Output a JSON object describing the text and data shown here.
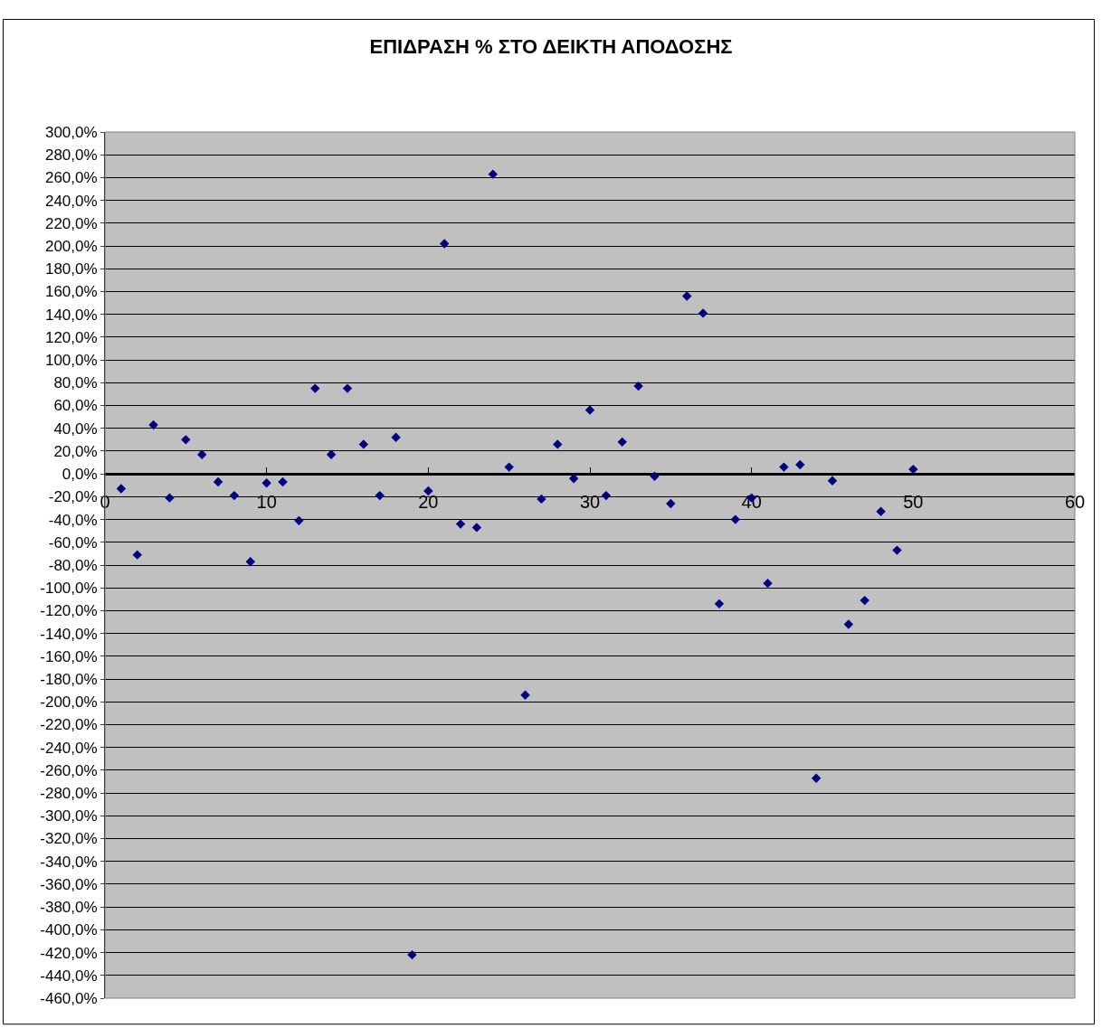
{
  "chart_data": {
    "type": "scatter",
    "title": "ΕΠΙΔΡΑΣΗ % ΣΤΟ ΔΕΙΚΤΗ ΑΠΟΔΟΣΗΣ",
    "x": [
      1,
      2,
      3,
      4,
      5,
      6,
      7,
      8,
      9,
      10,
      11,
      12,
      13,
      14,
      15,
      16,
      17,
      18,
      19,
      20,
      21,
      22,
      23,
      24,
      25,
      26,
      27,
      28,
      29,
      30,
      31,
      32,
      33,
      34,
      35,
      36,
      37,
      38,
      39,
      40,
      41,
      42,
      43,
      44,
      45,
      46,
      47,
      48,
      49,
      50
    ],
    "values": [
      -13,
      -71,
      43,
      -21,
      30,
      17,
      -7,
      -19,
      -77,
      -8,
      -7,
      -41,
      75,
      17,
      75,
      26,
      -19,
      32,
      -422,
      -15,
      202,
      -44,
      -47,
      263,
      6,
      -194,
      -22,
      26,
      -4,
      56,
      -19,
      28,
      77,
      -2,
      -26,
      156,
      141,
      -114,
      -40,
      -21,
      -96,
      6,
      8,
      -267,
      -6,
      -132,
      -111,
      -33,
      -67,
      4
    ],
    "color": "#000080",
    "marker": "diamond",
    "grid": "y",
    "xlim": [
      0,
      60
    ],
    "xticks": [
      0,
      10,
      20,
      30,
      40,
      50,
      60
    ],
    "ylim": [
      -460,
      300
    ],
    "yticks": [
      {
        "value": 300,
        "label": "300,0%"
      },
      {
        "value": 280,
        "label": "280,0%"
      },
      {
        "value": 260,
        "label": "260,0%"
      },
      {
        "value": 240,
        "label": "240,0%"
      },
      {
        "value": 220,
        "label": "220,0%"
      },
      {
        "value": 200,
        "label": "200,0%"
      },
      {
        "value": 180,
        "label": "180,0%"
      },
      {
        "value": 160,
        "label": "160,0%"
      },
      {
        "value": 140,
        "label": "140,0%"
      },
      {
        "value": 120,
        "label": "120,0%"
      },
      {
        "value": 100,
        "label": "100,0%"
      },
      {
        "value": 80,
        "label": "80,0%"
      },
      {
        "value": 60,
        "label": "60,0%"
      },
      {
        "value": 40,
        "label": "40,0%"
      },
      {
        "value": 20,
        "label": "20,0%"
      },
      {
        "value": 0,
        "label": "0,0%"
      },
      {
        "value": -20,
        "label": "-20,0%"
      },
      {
        "value": -40,
        "label": "-40,0%"
      },
      {
        "value": -60,
        "label": "-60,0%"
      },
      {
        "value": -80,
        "label": "-80,0%"
      },
      {
        "value": -100,
        "label": "-100,0%"
      },
      {
        "value": -120,
        "label": "-120,0%"
      },
      {
        "value": -140,
        "label": "-140,0%"
      },
      {
        "value": -160,
        "label": "-160,0%"
      },
      {
        "value": -180,
        "label": "-180,0%"
      },
      {
        "value": -200,
        "label": "-200,0%"
      },
      {
        "value": -220,
        "label": "-220,0%"
      },
      {
        "value": -240,
        "label": "-240,0%"
      },
      {
        "value": -260,
        "label": "-260,0%"
      },
      {
        "value": -280,
        "label": "-280,0%"
      },
      {
        "value": -300,
        "label": "-300,0%"
      },
      {
        "value": -320,
        "label": "-320,0%"
      },
      {
        "value": -340,
        "label": "-340,0%"
      },
      {
        "value": -360,
        "label": "-360,0%"
      },
      {
        "value": -380,
        "label": "-380,0%"
      },
      {
        "value": -400,
        "label": "-400,0%"
      },
      {
        "value": -420,
        "label": "-420,0%"
      },
      {
        "value": -440,
        "label": "-440,0%"
      },
      {
        "value": -460,
        "label": "-460,0%"
      }
    ]
  }
}
